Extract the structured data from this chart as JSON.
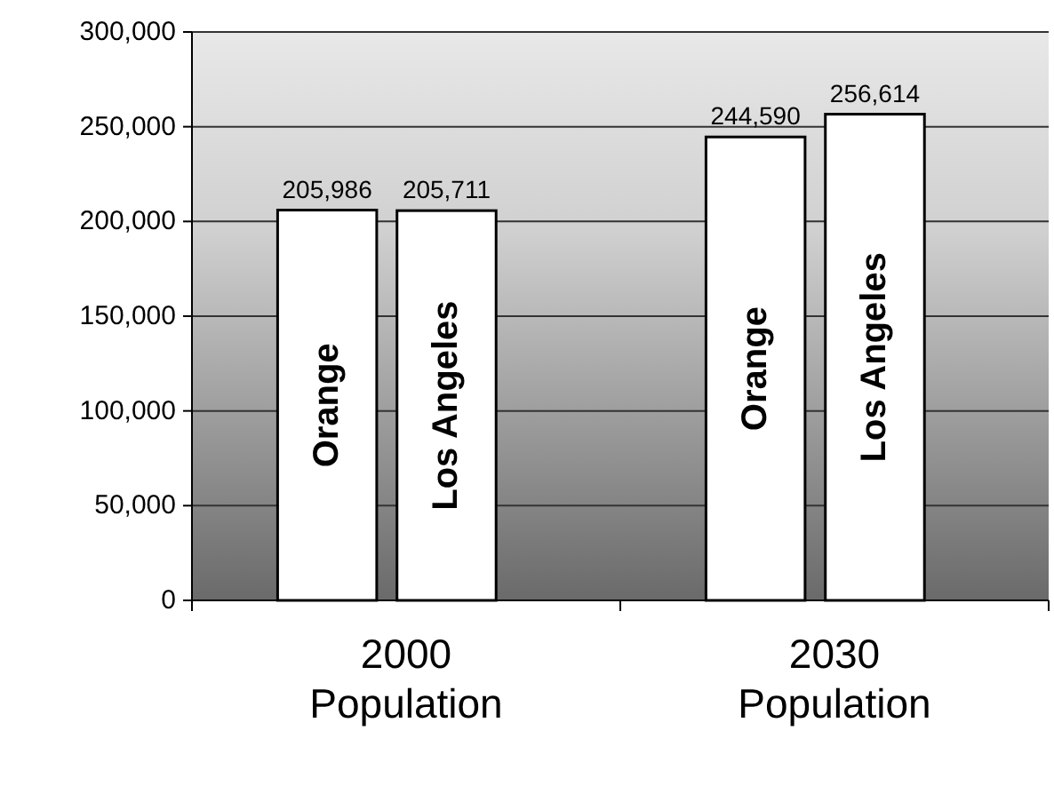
{
  "chart_data": {
    "type": "bar",
    "categories": [
      "2000 Population",
      "2030 Population"
    ],
    "series": [
      {
        "name": "Orange",
        "color": "#ffffff",
        "values": [
          205986,
          244590
        ],
        "value_labels": [
          "205,986",
          "244,590"
        ]
      },
      {
        "name": "Los Angeles",
        "color": "#ffffff",
        "values": [
          205711,
          256614
        ],
        "value_labels": [
          "205,711",
          "256,614"
        ]
      }
    ],
    "ylim": [
      0,
      300000
    ],
    "yticks": [
      {
        "value": 0,
        "label": "0"
      },
      {
        "value": 50000,
        "label": "50,000"
      },
      {
        "value": 100000,
        "label": "100,000"
      },
      {
        "value": 150000,
        "label": "150,000"
      },
      {
        "value": 200000,
        "label": "200,000"
      },
      {
        "value": 250000,
        "label": "250,000"
      },
      {
        "value": 300000,
        "label": "300,000"
      }
    ],
    "grid": "y",
    "legend": false
  }
}
